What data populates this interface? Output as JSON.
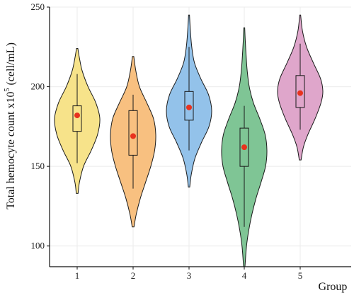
{
  "chart_data": {
    "type": "violin",
    "xlabel": "Group",
    "ylabel_main": "Total hemocyte count x10",
    "ylabel_exp": "5",
    "ylabel_unit": " (cell/mL)",
    "ylim": [
      87,
      250
    ],
    "yticks": [
      100,
      150,
      200,
      250
    ],
    "grid": true,
    "categories": [
      "1",
      "2",
      "3",
      "4",
      "5"
    ],
    "series": [
      {
        "category": "1",
        "color": "#f7e38a",
        "min": 133,
        "max": 224,
        "whisker_low": 152,
        "q1": 172,
        "median": 182,
        "q3": 188,
        "whisker_high": 208,
        "mean": 182,
        "density": [
          [
            133,
            0.04
          ],
          [
            140,
            0.1
          ],
          [
            150,
            0.28
          ],
          [
            160,
            0.62
          ],
          [
            170,
            0.9
          ],
          [
            180,
            1.0
          ],
          [
            190,
            0.82
          ],
          [
            200,
            0.48
          ],
          [
            210,
            0.22
          ],
          [
            218,
            0.1
          ],
          [
            224,
            0.03
          ]
        ]
      },
      {
        "category": "2",
        "color": "#f8c080",
        "min": 112,
        "max": 219,
        "whisker_low": 136,
        "q1": 157,
        "median": 169,
        "q3": 185,
        "whisker_high": 195,
        "mean": 169,
        "density": [
          [
            112,
            0.04
          ],
          [
            120,
            0.14
          ],
          [
            130,
            0.32
          ],
          [
            140,
            0.55
          ],
          [
            150,
            0.78
          ],
          [
            160,
            0.95
          ],
          [
            170,
            1.0
          ],
          [
            180,
            0.9
          ],
          [
            190,
            0.6
          ],
          [
            200,
            0.28
          ],
          [
            210,
            0.12
          ],
          [
            219,
            0.03
          ]
        ]
      },
      {
        "category": "3",
        "color": "#93c2ea",
        "min": 137,
        "max": 245,
        "whisker_low": 160,
        "q1": 179,
        "median": 187,
        "q3": 197,
        "whisker_high": 225,
        "mean": 187,
        "density": [
          [
            137,
            0.03
          ],
          [
            145,
            0.1
          ],
          [
            155,
            0.26
          ],
          [
            165,
            0.55
          ],
          [
            175,
            0.88
          ],
          [
            185,
            1.0
          ],
          [
            195,
            0.86
          ],
          [
            205,
            0.52
          ],
          [
            215,
            0.24
          ],
          [
            225,
            0.12
          ],
          [
            235,
            0.06
          ],
          [
            245,
            0.02
          ]
        ]
      },
      {
        "category": "4",
        "color": "#7fc595",
        "min": 87,
        "max": 237,
        "whisker_low": 112,
        "q1": 150,
        "median": 162,
        "q3": 174,
        "whisker_high": 188,
        "mean": 162,
        "density": [
          [
            87,
            0.03
          ],
          [
            100,
            0.1
          ],
          [
            110,
            0.2
          ],
          [
            120,
            0.34
          ],
          [
            130,
            0.52
          ],
          [
            140,
            0.74
          ],
          [
            150,
            0.94
          ],
          [
            160,
            1.0
          ],
          [
            170,
            0.92
          ],
          [
            180,
            0.68
          ],
          [
            190,
            0.4
          ],
          [
            200,
            0.22
          ],
          [
            210,
            0.13
          ],
          [
            220,
            0.08
          ],
          [
            230,
            0.04
          ],
          [
            237,
            0.02
          ]
        ]
      },
      {
        "category": "5",
        "color": "#dfa6cb",
        "min": 154,
        "max": 245,
        "whisker_low": 173,
        "q1": 187,
        "median": 196,
        "q3": 207,
        "whisker_high": 227,
        "mean": 196,
        "density": [
          [
            154,
            0.04
          ],
          [
            162,
            0.14
          ],
          [
            170,
            0.34
          ],
          [
            180,
            0.66
          ],
          [
            190,
            0.92
          ],
          [
            197,
            1.0
          ],
          [
            205,
            0.9
          ],
          [
            215,
            0.58
          ],
          [
            225,
            0.28
          ],
          [
            235,
            0.1
          ],
          [
            245,
            0.02
          ]
        ]
      }
    ],
    "colors": {
      "outline": "#1a1a1a",
      "mean_dot": "#e8321e",
      "grid": "#ebebeb"
    }
  }
}
